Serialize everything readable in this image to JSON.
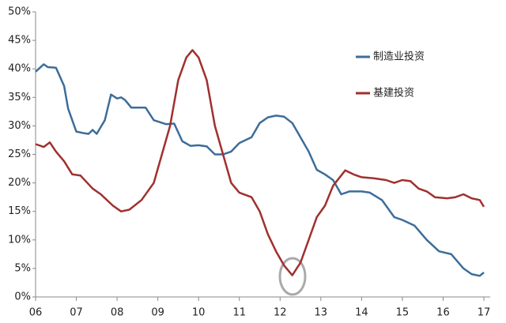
{
  "chart_data": {
    "type": "line",
    "xlim": [
      6,
      17
    ],
    "xticks": [
      {
        "value": 6,
        "label": "06"
      },
      {
        "value": 7,
        "label": "07"
      },
      {
        "value": 8,
        "label": "08"
      },
      {
        "value": 9,
        "label": "09"
      },
      10,
      11,
      12,
      13,
      14,
      15,
      16,
      17
    ],
    "ylim": [
      0,
      50
    ],
    "yticks": [
      {
        "value": 0,
        "label": "0%"
      },
      {
        "value": 5,
        "label": "5%"
      },
      {
        "value": 10,
        "label": "10%"
      },
      {
        "value": 15,
        "label": "15%"
      },
      {
        "value": 20,
        "label": "20%"
      },
      {
        "value": 25,
        "label": "25%"
      },
      {
        "value": 30,
        "label": "30%"
      },
      {
        "value": 35,
        "label": "35%"
      },
      {
        "value": 40,
        "label": "40%"
      },
      {
        "value": 45,
        "label": "45%"
      },
      {
        "value": 50,
        "label": "50%"
      }
    ],
    "series": [
      {
        "name": "制造业投资",
        "color": "#3d6d99",
        "x": [
          6.0,
          6.2,
          6.3,
          6.5,
          6.7,
          6.8,
          7.0,
          7.2,
          7.3,
          7.4,
          7.5,
          7.7,
          7.85,
          8.0,
          8.1,
          8.2,
          8.35,
          8.7,
          8.9,
          9.2,
          9.4,
          9.6,
          9.8,
          10.0,
          10.2,
          10.4,
          10.6,
          10.8,
          11.0,
          11.3,
          11.5,
          11.7,
          11.9,
          12.1,
          12.3,
          12.5,
          12.7,
          12.9,
          13.1,
          13.3,
          13.5,
          13.7,
          14.0,
          14.2,
          14.5,
          14.8,
          15.0,
          15.3,
          15.6,
          15.9,
          16.2,
          16.5,
          16.7,
          16.9,
          17.0
        ],
        "values": [
          39.5,
          40.8,
          40.3,
          40.2,
          37,
          33,
          29,
          28.7,
          28.6,
          29.3,
          28.6,
          31,
          35.5,
          34.8,
          35,
          34.5,
          33.2,
          33.2,
          31,
          30.3,
          30.4,
          27.3,
          26.5,
          26.6,
          26.4,
          25,
          25,
          25.5,
          27,
          28,
          30.5,
          31.5,
          31.8,
          31.6,
          30.5,
          28,
          25.5,
          22.3,
          21.5,
          20.5,
          18,
          18.5,
          18.5,
          18.3,
          17,
          14,
          13.5,
          12.5,
          10,
          8,
          7.5,
          5,
          4,
          3.7,
          4.3
        ]
      },
      {
        "name": "基建投资",
        "color": "#a0302e",
        "x": [
          6.0,
          6.2,
          6.35,
          6.5,
          6.7,
          6.9,
          7.1,
          7.4,
          7.6,
          7.9,
          8.1,
          8.3,
          8.6,
          8.9,
          9.1,
          9.3,
          9.5,
          9.7,
          9.85,
          10.0,
          10.2,
          10.4,
          10.6,
          10.8,
          11.0,
          11.3,
          11.5,
          11.7,
          11.9,
          12.1,
          12.3,
          12.5,
          12.7,
          12.9,
          13.1,
          13.3,
          13.6,
          13.8,
          14.0,
          14.3,
          14.6,
          14.8,
          15.0,
          15.2,
          15.4,
          15.6,
          15.8,
          16.1,
          16.3,
          16.5,
          16.7,
          16.9,
          17.0
        ],
        "values": [
          26.8,
          26.3,
          27.1,
          25.5,
          23.8,
          21.5,
          21.3,
          19,
          18,
          16,
          15,
          15.3,
          17,
          20,
          25,
          30,
          38,
          42,
          43.3,
          42,
          38,
          30,
          25,
          20,
          18.3,
          17.5,
          15,
          11,
          8,
          5.5,
          3.8,
          6,
          10,
          14,
          16,
          19.5,
          22.2,
          21.5,
          21,
          20.8,
          20.5,
          20,
          20.5,
          20.3,
          19,
          18.5,
          17.5,
          17.3,
          17.5,
          18,
          17.3,
          17,
          15.8
        ]
      }
    ]
  }
}
